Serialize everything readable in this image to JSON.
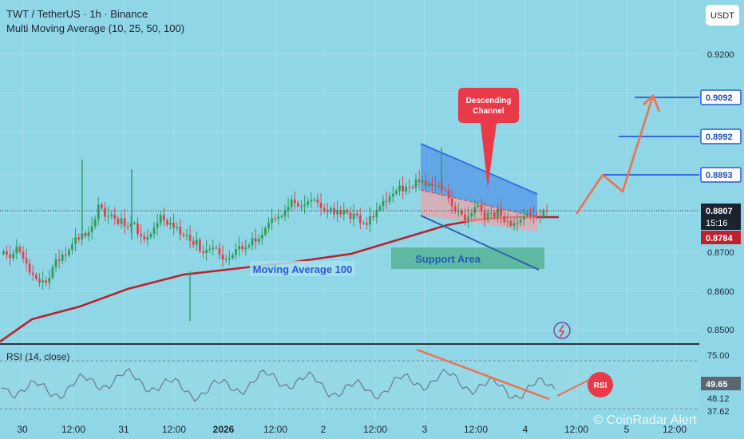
{
  "header": {
    "symbol_line": "TWT / TetherUS · 1h · Binance",
    "indicator_line": "Multi Moving Average (10, 25, 50, 100)"
  },
  "currency_badge": "USDT",
  "annotations": {
    "descending_channel": [
      "Descending",
      "Channel"
    ],
    "support_area": "Support Area",
    "moving_average": "Moving Average 100",
    "rsi_bubble": "RSI"
  },
  "price_tags": {
    "target_3": "0.9092",
    "target_2": "0.8992",
    "target_1": "0.8893",
    "last": "0.8807",
    "countdown": "15:16",
    "ma": "0.8784"
  },
  "rsi_tags": {
    "upper": "75.00",
    "current": "49.65",
    "mid": "48.12",
    "lower": "37.62"
  },
  "rsi_label": "RSI (14, close)",
  "watermark": "CoinRadar Alert",
  "colors": {
    "background": "#8fd6e6",
    "bull": "#2e9e5b",
    "bear": "#e0444f",
    "ma": "#b8232e",
    "channel": "#2f6fe0",
    "arrow": "#f07050",
    "rsi": "#6c7c88"
  },
  "chart_data": {
    "type": "candlestick",
    "title": "TWT / TetherUS · 1h · Binance",
    "xlabel": "",
    "ylabel": "",
    "x_ticks": [
      "30",
      "12:00",
      "31",
      "12:00",
      "2026",
      "12:00",
      "2",
      "12:00",
      "3",
      "12:00",
      "4",
      "12:00",
      "5",
      "12:00"
    ],
    "y_ticks": [
      "0.9200",
      "0.9100",
      "0.9000",
      "0.8900",
      "0.8800",
      "0.8700",
      "0.8600",
      "0.8500"
    ],
    "ylim": [
      0.8465,
      0.9295
    ],
    "close": [
      0.8702,
      0.8694,
      0.8685,
      0.8697,
      0.8714,
      0.8701,
      0.8684,
      0.8671,
      0.8647,
      0.8642,
      0.8631,
      0.8622,
      0.8627,
      0.8621,
      0.8634,
      0.8662,
      0.8682,
      0.8678,
      0.8694,
      0.8692,
      0.8706,
      0.8721,
      0.8738,
      0.8733,
      0.8749,
      0.8741,
      0.8752,
      0.8767,
      0.8785,
      0.8823,
      0.8814,
      0.8792,
      0.8794,
      0.8797,
      0.8787,
      0.8773,
      0.8788,
      0.8767,
      0.8766,
      0.8775,
      0.8775,
      0.8747,
      0.8742,
      0.8733,
      0.8739,
      0.8747,
      0.8763,
      0.8775,
      0.8796,
      0.8782,
      0.8771,
      0.8776,
      0.8763,
      0.8766,
      0.8746,
      0.8743,
      0.8745,
      0.8729,
      0.8719,
      0.8733,
      0.8702,
      0.8698,
      0.8706,
      0.8708,
      0.8712,
      0.8711,
      0.8694,
      0.8681,
      0.8682,
      0.8685,
      0.8693,
      0.8708,
      0.8716,
      0.8708,
      0.8713,
      0.8718,
      0.8736,
      0.8727,
      0.8735,
      0.8745,
      0.8762,
      0.8776,
      0.8788,
      0.8787,
      0.8792,
      0.8793,
      0.8808,
      0.8817,
      0.8836,
      0.8827,
      0.8819,
      0.8819,
      0.8823,
      0.8831,
      0.8835,
      0.8836,
      0.8828,
      0.8814,
      0.8808,
      0.8804,
      0.8814,
      0.8798,
      0.8809,
      0.8798,
      0.8809,
      0.8802,
      0.8786,
      0.88,
      0.8795,
      0.8775,
      0.8775,
      0.8771,
      0.8793,
      0.879,
      0.8809,
      0.8819,
      0.8832,
      0.8831,
      0.8844,
      0.8851,
      0.8859,
      0.8872,
      0.8857,
      0.8869,
      0.8868,
      0.8867,
      0.8888,
      0.8881,
      0.8885,
      0.8871,
      0.8879,
      0.8871,
      0.8872,
      0.8871,
      0.8861,
      0.886,
      0.8839,
      0.8819,
      0.8807,
      0.8807,
      0.8798,
      0.8781,
      0.8792,
      0.8801,
      0.8817,
      0.8822,
      0.8806,
      0.8785,
      0.8802,
      0.8802,
      0.879,
      0.8812,
      0.8793,
      0.8779,
      0.8781,
      0.8768,
      0.8775,
      0.8776,
      0.8784,
      0.8793,
      0.8802,
      0.8796,
      0.8794,
      0.8792,
      0.8791,
      0.8808,
      0.8807
    ],
    "ma100_approx": [
      0.8465,
      0.8508,
      0.8548,
      0.859,
      0.863,
      0.865,
      0.8668,
      0.869,
      0.8712,
      0.8738,
      0.8772,
      0.8784
    ],
    "drawings": {
      "descending_channel": "0.8870 to 0.8782 (upper), 0.8790 to 0.8700 (lower)",
      "support_area": [
        0.869,
        0.8707
      ],
      "targets": [
        0.8893,
        0.8992,
        0.9092
      ]
    },
    "rsi": {
      "name": "RSI (14, close)",
      "levels": [
        75.0,
        48.12,
        37.62
      ],
      "current": 49.65
    },
    "grid": true,
    "legend": "top-left"
  }
}
